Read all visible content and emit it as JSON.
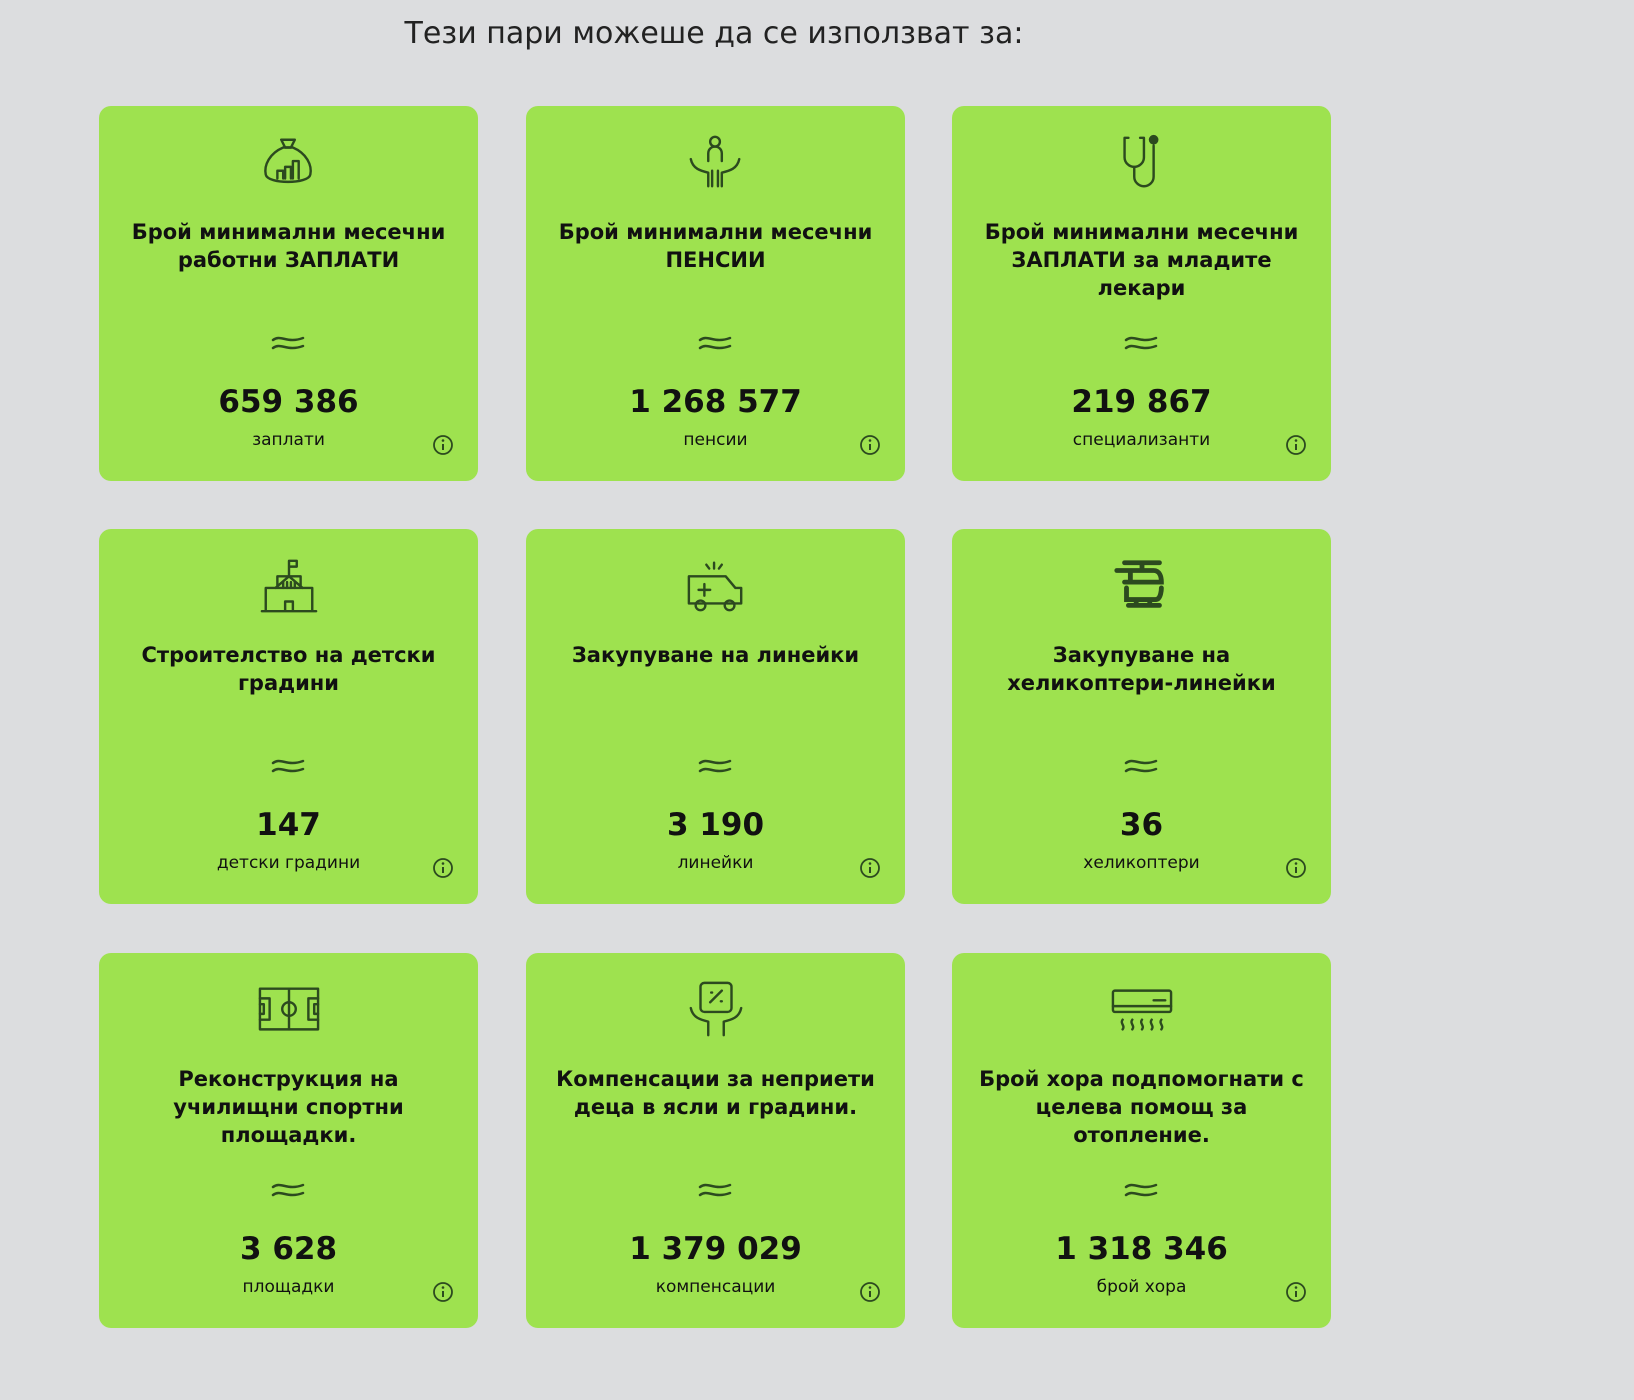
{
  "header": {
    "title": "Тези пари можеше да се използват за:"
  },
  "cards": [
    {
      "heading": "Брой минимални месечни работни ЗАПЛАТИ",
      "value": "659 386",
      "unit": "заплати"
    },
    {
      "heading": "Брой минимални месечни ПЕНСИИ",
      "value": "1 268 577",
      "unit": "пенсии"
    },
    {
      "heading": "Брой минимални месечни ЗАПЛАТИ за младите лекари",
      "value": "219 867",
      "unit": "специализанти"
    },
    {
      "heading": "Строителство на детски градини",
      "value": "147",
      "unit": "детски градини"
    },
    {
      "heading": "Закупуване на линейки",
      "value": "3 190",
      "unit": "линейки"
    },
    {
      "heading": "Закупуване на хеликоптери-линейки",
      "value": "36",
      "unit": "хеликоптери"
    },
    {
      "heading": "Реконструкция на училищни спортни площадки.",
      "value": "3 628",
      "unit": "площадки"
    },
    {
      "heading": "Компенсации за неприети деца в ясли и градини.",
      "value": "1 379 029",
      "unit": "компенсации"
    },
    {
      "heading": "Брой хора подпомогнати с целева помощ за отопление.",
      "value": "1 318 346",
      "unit": "брой хора"
    }
  ]
}
